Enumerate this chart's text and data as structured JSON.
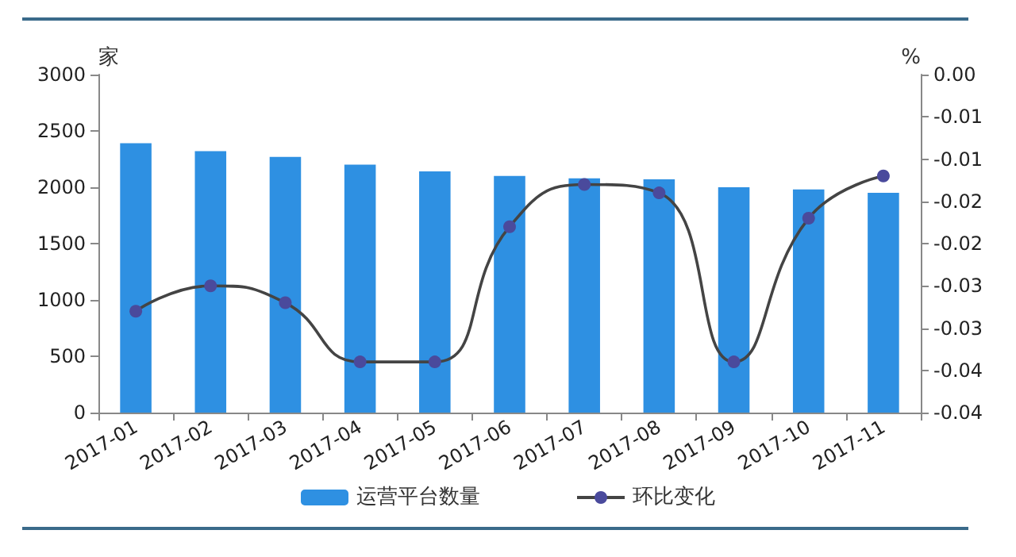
{
  "chart_data": {
    "type": "bar",
    "categories": [
      "2017-01",
      "2017-02",
      "2017-03",
      "2017-04",
      "2017-05",
      "2017-06",
      "2017-07",
      "2017-08",
      "2017-09",
      "2017-10",
      "2017-11"
    ],
    "ylabel": "家",
    "y2label": "%",
    "series": [
      {
        "name": "运营平台数量",
        "color": "#2e90e2",
        "values": [
          2390,
          2320,
          2270,
          2200,
          2140,
          2100,
          2080,
          2070,
          2000,
          1980,
          1950
        ]
      },
      {
        "name": "环比变化",
        "type": "line",
        "axis": "y2",
        "color": "#4a4a9c",
        "marker": "circle",
        "values": [
          -0.028,
          -0.025,
          -0.027,
          -0.034,
          -0.034,
          -0.018,
          -0.013,
          -0.014,
          -0.034,
          -0.017,
          -0.012
        ]
      }
    ],
    "ylim": [
      0,
      3000
    ],
    "yticks": [
      0,
      500,
      1000,
      1500,
      2000,
      2500,
      3000
    ],
    "y2lim": [
      -0.04,
      0
    ],
    "y2ticks": [
      {
        "value": 0,
        "label": "0.00"
      },
      {
        "value": -0.005,
        "label": "-0.01"
      },
      {
        "value": -0.01,
        "label": "-0.01"
      },
      {
        "value": -0.015,
        "label": "-0.02"
      },
      {
        "value": -0.02,
        "label": "-0.02"
      },
      {
        "value": -0.025,
        "label": "-0.03"
      },
      {
        "value": -0.03,
        "label": "-0.03"
      },
      {
        "value": -0.035,
        "label": "-0.04"
      },
      {
        "value": -0.04,
        "label": "-0.04"
      }
    ],
    "grid": false,
    "legend": "bottom"
  }
}
